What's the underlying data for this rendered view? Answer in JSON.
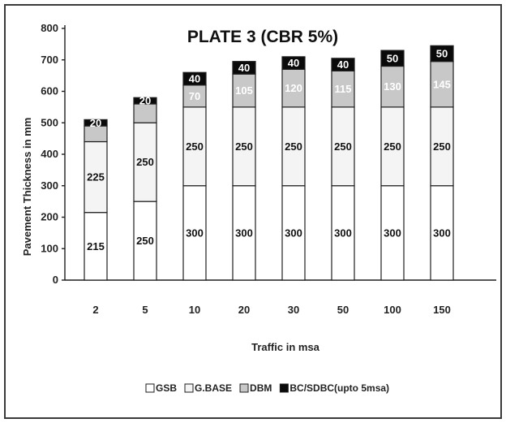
{
  "chart_data": {
    "type": "bar",
    "stacked": true,
    "title": "PLATE 3 (CBR 5%)",
    "xlabel": "Traffic in msa",
    "ylabel": "Pavement Thickness in mm",
    "ylim": [
      0,
      800
    ],
    "yticks": [
      0,
      100,
      200,
      300,
      400,
      500,
      600,
      700,
      800
    ],
    "grid": false,
    "legend_position": "bottom",
    "categories": [
      "2",
      "5",
      "10",
      "20",
      "30",
      "50",
      "100",
      "150"
    ],
    "series": [
      {
        "name": "GSB",
        "color": "#ffffff",
        "label_color": "#111111",
        "values": [
          215,
          250,
          300,
          300,
          300,
          300,
          300,
          300
        ]
      },
      {
        "name": "G.BASE",
        "color": "#f4f4f4",
        "label_color": "#111111",
        "values": [
          225,
          250,
          250,
          250,
          250,
          250,
          250,
          250
        ]
      },
      {
        "name": "DBM",
        "color": "#c8c8c8",
        "label_color": "#ffffff",
        "values": [
          50,
          60,
          70,
          105,
          120,
          115,
          130,
          145
        ]
      },
      {
        "name": "BC/SDBC(upto 5msa)",
        "color": "#0a0a0a",
        "label_color": "#ffffff",
        "values": [
          20,
          20,
          40,
          40,
          40,
          40,
          50,
          50
        ]
      }
    ],
    "value_labels": [
      [
        "215",
        "250",
        "300",
        "300",
        "300",
        "300",
        "300",
        "300"
      ],
      [
        "225",
        "250",
        "250",
        "250",
        "250",
        "250",
        "250",
        "250"
      ],
      [
        "",
        "",
        "70",
        "105",
        "120",
        "115",
        "130",
        "145"
      ],
      [
        "20",
        "20",
        "40",
        "40",
        "40",
        "40",
        "50",
        "50"
      ]
    ]
  }
}
